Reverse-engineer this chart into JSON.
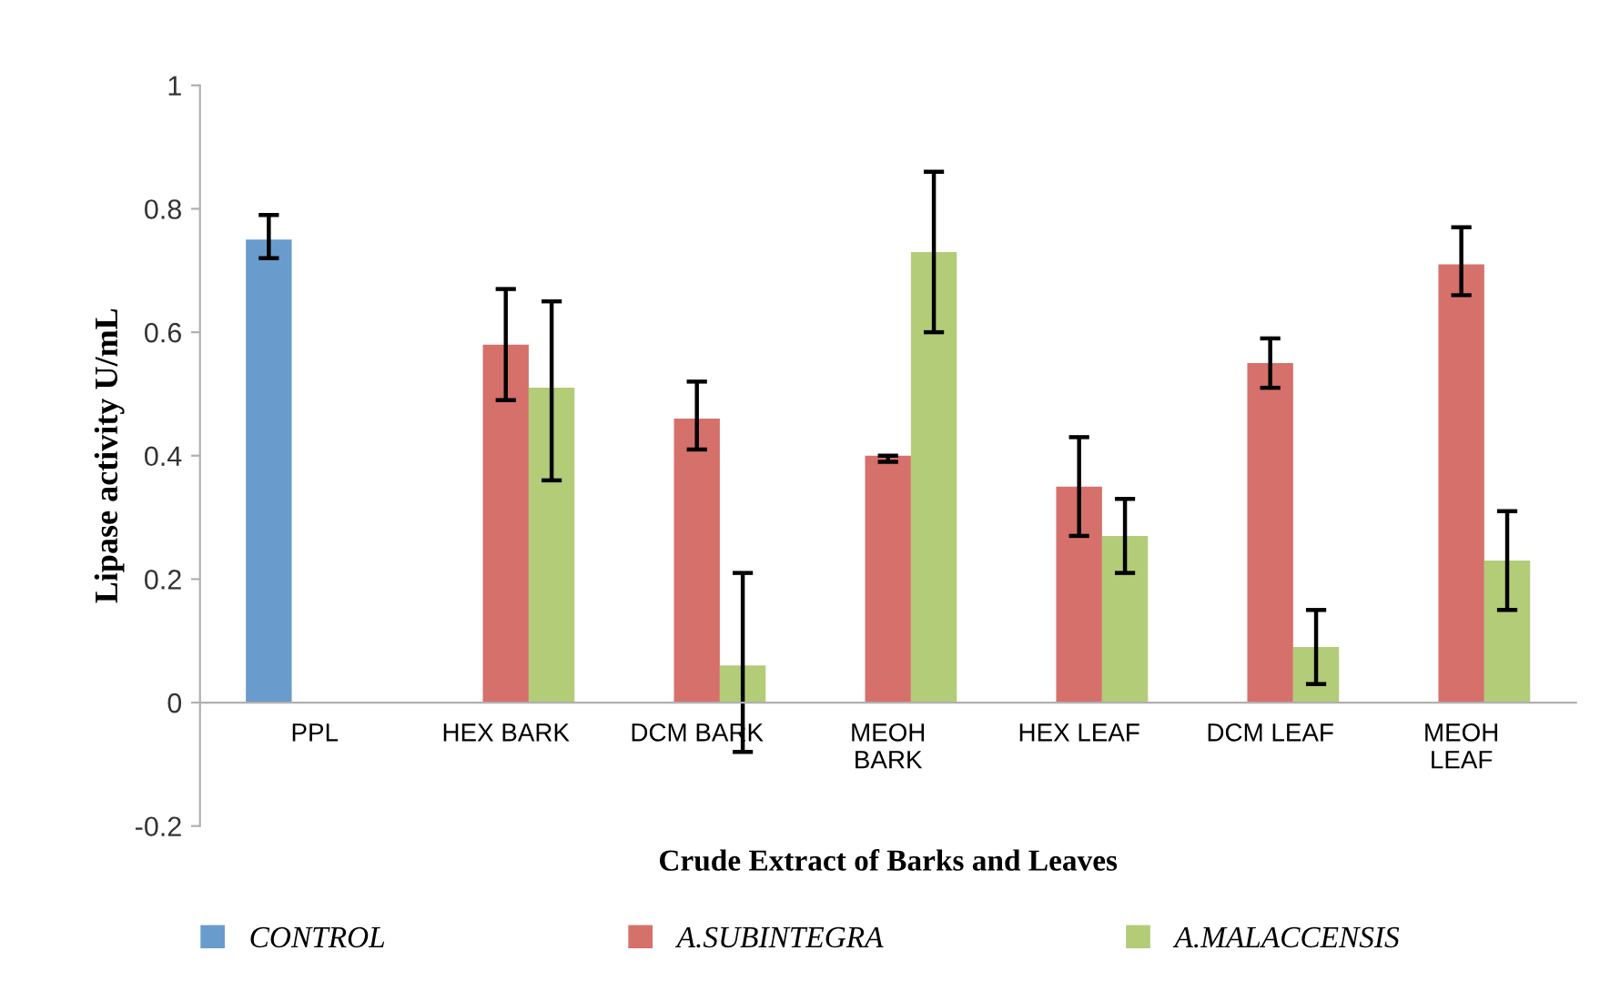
{
  "chart_data": {
    "type": "bar",
    "xlabel": "Crude Extract of Barks and Leaves",
    "ylabel": "Lipase activity U/mL",
    "categories": [
      "PPL",
      "HEX BARK",
      "DCM BARK",
      "MEOH\nBARK",
      "HEX LEAF",
      "DCM LEAF",
      "MEOH\nLEAF"
    ],
    "series": [
      {
        "name": "CONTROL",
        "color": "#6a9bcd",
        "values": [
          0.75,
          null,
          null,
          null,
          null,
          null,
          null
        ],
        "errors": [
          [
            0.72,
            0.79
          ],
          null,
          null,
          null,
          null,
          null,
          null
        ]
      },
      {
        "name": "A.SUBINTEGRA",
        "color": "#d5706b",
        "values": [
          null,
          0.58,
          0.46,
          0.4,
          0.35,
          0.55,
          0.71
        ],
        "errors": [
          null,
          [
            0.49,
            0.67
          ],
          [
            0.41,
            0.52
          ],
          [
            0.39,
            0.4
          ],
          [
            0.27,
            0.43
          ],
          [
            0.51,
            0.59
          ],
          [
            0.66,
            0.77
          ]
        ]
      },
      {
        "name": "A.MALACCENSIS",
        "color": "#b2cc78",
        "values": [
          null,
          0.51,
          0.06,
          0.73,
          0.27,
          0.09,
          0.23
        ],
        "errors": [
          null,
          [
            0.36,
            0.65
          ],
          [
            -0.08,
            0.21
          ],
          [
            0.6,
            0.86
          ],
          [
            0.21,
            0.33
          ],
          [
            0.03,
            0.15
          ],
          [
            0.15,
            0.31
          ]
        ]
      }
    ],
    "ylim": [
      -0.2,
      1
    ],
    "yticks": [
      {
        "value": -0.2,
        "label": "-0.2"
      },
      0,
      0.2,
      0.4,
      0.6,
      0.8,
      1
    ],
    "grid": false,
    "legend": "bottom"
  }
}
